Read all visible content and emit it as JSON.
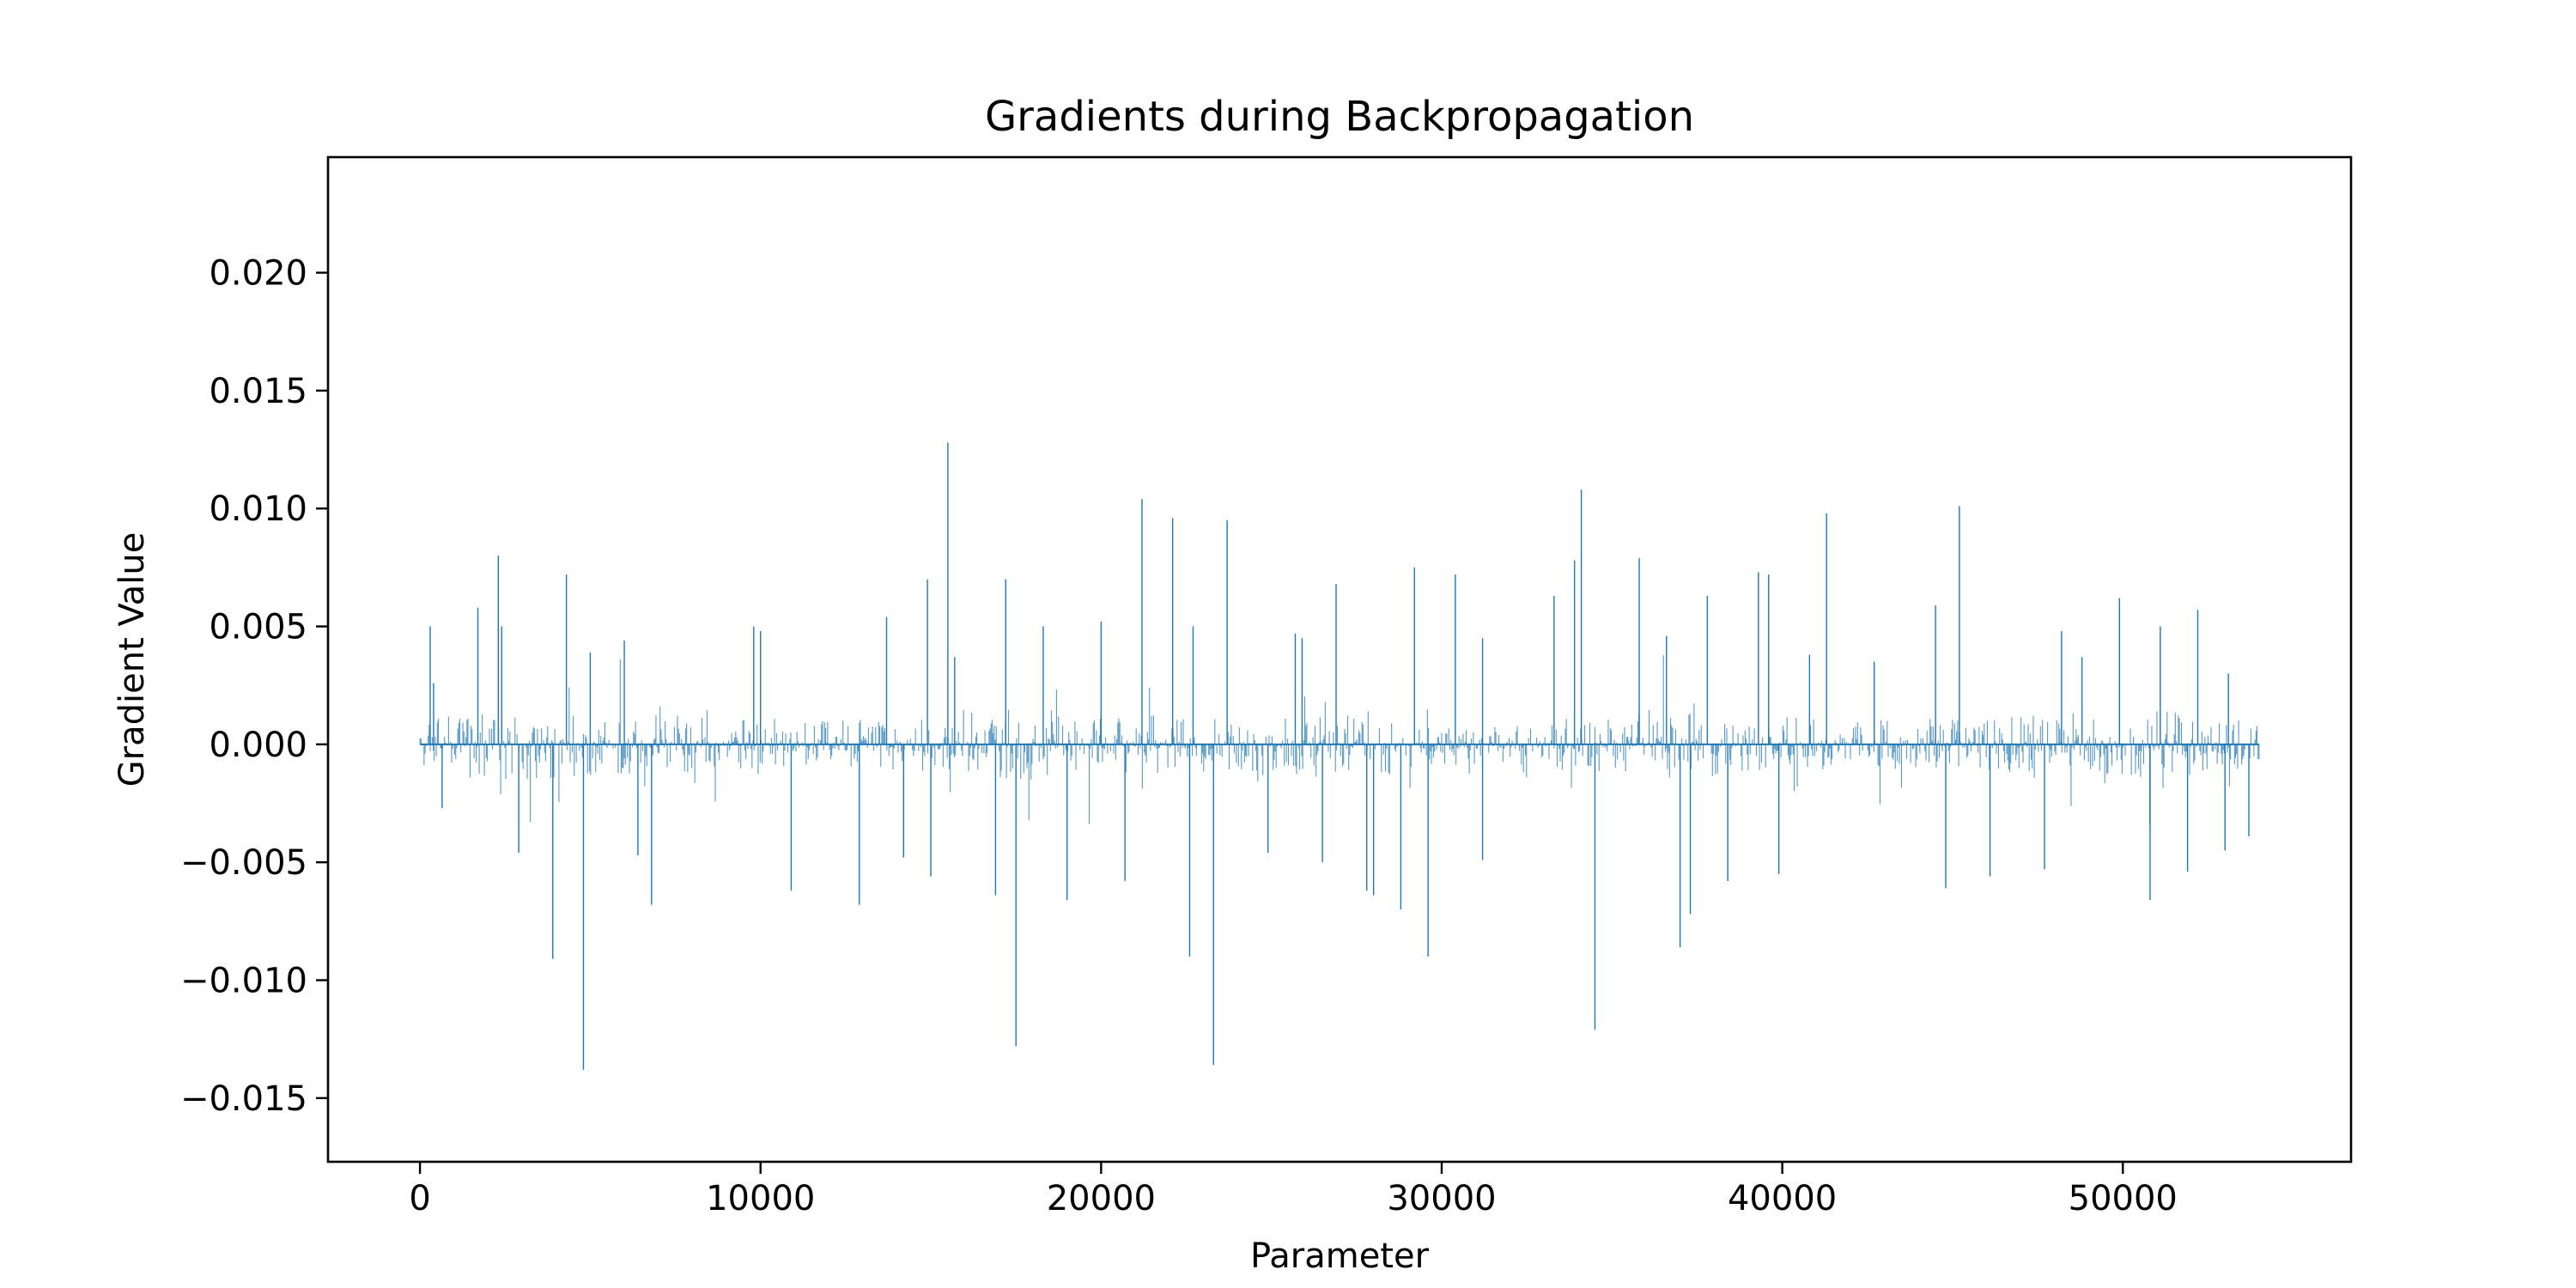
{
  "chart_data": {
    "type": "bar",
    "title": "Gradients during Backpropagation",
    "xlabel": "Parameter",
    "ylabel": "Gradient Value",
    "xlim": [
      -2700,
      56700
    ],
    "ylim": [
      -0.0177,
      0.0249
    ],
    "x_ticks": [
      0,
      10000,
      20000,
      30000,
      40000,
      50000
    ],
    "x_tick_labels": [
      "0",
      "10000",
      "20000",
      "30000",
      "40000",
      "50000"
    ],
    "y_ticks": [
      -0.015,
      -0.01,
      -0.005,
      0.0,
      0.005,
      0.01,
      0.015,
      0.02
    ],
    "y_tick_labels": [
      "−0.015",
      "−0.010",
      "−0.005",
      "0.000",
      "0.005",
      "0.010",
      "0.015",
      "0.020"
    ],
    "grid": false,
    "legend": "none",
    "color": "#1f77b4",
    "n_parameters": 54000,
    "prominent_values": [
      [
        300,
        0.005
      ],
      [
        400,
        0.0026
      ],
      [
        650,
        -0.0027
      ],
      [
        1700,
        0.0058
      ],
      [
        2300,
        0.008
      ],
      [
        2400,
        0.005
      ],
      [
        2900,
        -0.0046
      ],
      [
        3900,
        -0.0091
      ],
      [
        4300,
        0.0072
      ],
      [
        4800,
        -0.0138
      ],
      [
        5000,
        0.0039
      ],
      [
        6000,
        0.0044
      ],
      [
        6400,
        -0.0047
      ],
      [
        6800,
        -0.0068
      ],
      [
        9800,
        0.005
      ],
      [
        10000,
        0.0048
      ],
      [
        10900,
        -0.0062
      ],
      [
        12900,
        -0.0068
      ],
      [
        13700,
        0.0054
      ],
      [
        14200,
        -0.0048
      ],
      [
        14900,
        0.007
      ],
      [
        15000,
        -0.0056
      ],
      [
        15500,
        0.0128
      ],
      [
        15700,
        0.0037
      ],
      [
        16900,
        -0.0064
      ],
      [
        17200,
        0.007
      ],
      [
        17500,
        -0.0128
      ],
      [
        18300,
        0.005
      ],
      [
        19000,
        -0.0066
      ],
      [
        20000,
        0.0052
      ],
      [
        20700,
        -0.0058
      ],
      [
        21200,
        0.0104
      ],
      [
        22100,
        0.0096
      ],
      [
        22600,
        -0.009
      ],
      [
        22700,
        0.005
      ],
      [
        23300,
        -0.0136
      ],
      [
        23700,
        0.0095
      ],
      [
        24900,
        -0.0046
      ],
      [
        25700,
        0.0047
      ],
      [
        25900,
        0.0045
      ],
      [
        26500,
        -0.005
      ],
      [
        26900,
        0.0068
      ],
      [
        27800,
        -0.0062
      ],
      [
        28000,
        -0.0064
      ],
      [
        28800,
        -0.007
      ],
      [
        29200,
        0.0075
      ],
      [
        29600,
        -0.009
      ],
      [
        30400,
        0.0072
      ],
      [
        31200,
        -0.0049
      ],
      [
        31200,
        0.0045
      ],
      [
        33300,
        0.0063
      ],
      [
        33900,
        0.0078
      ],
      [
        34100,
        0.0108
      ],
      [
        34500,
        -0.0121
      ],
      [
        35800,
        0.0079
      ],
      [
        36600,
        0.0046
      ],
      [
        37000,
        -0.0086
      ],
      [
        37300,
        -0.0072
      ],
      [
        37800,
        0.0063
      ],
      [
        38400,
        -0.0058
      ],
      [
        39300,
        0.0073
      ],
      [
        39600,
        0.0072
      ],
      [
        39900,
        -0.0055
      ],
      [
        40800,
        0.0038
      ],
      [
        41300,
        0.0098
      ],
      [
        42700,
        0.0035
      ],
      [
        44500,
        0.0059
      ],
      [
        44800,
        -0.0061
      ],
      [
        45200,
        0.0101
      ],
      [
        46100,
        -0.0056
      ],
      [
        47700,
        -0.0053
      ],
      [
        48200,
        0.0048
      ],
      [
        48800,
        0.0037
      ],
      [
        49900,
        0.0062
      ],
      [
        50800,
        -0.0066
      ],
      [
        51100,
        0.005
      ],
      [
        51900,
        -0.0054
      ],
      [
        52200,
        0.0057
      ],
      [
        53000,
        -0.0045
      ],
      [
        53100,
        0.003
      ],
      [
        53700,
        -0.0039
      ]
    ],
    "background_amplitude": [
      [
        0,
        0.001
      ],
      [
        2000,
        0.0016
      ],
      [
        4000,
        0.0014
      ],
      [
        6000,
        0.0014
      ],
      [
        8000,
        0.0012
      ],
      [
        10000,
        0.001
      ],
      [
        12000,
        0.001
      ],
      [
        14000,
        0.0011
      ],
      [
        16000,
        0.0014
      ],
      [
        18000,
        0.0015
      ],
      [
        20000,
        0.0013
      ],
      [
        22000,
        0.0012
      ],
      [
        24000,
        0.0012
      ],
      [
        26000,
        0.0014
      ],
      [
        28000,
        0.0014
      ],
      [
        30000,
        0.0009
      ],
      [
        32000,
        0.0008
      ],
      [
        34000,
        0.0012
      ],
      [
        36000,
        0.0015
      ],
      [
        38000,
        0.0014
      ],
      [
        40000,
        0.0012
      ],
      [
        42000,
        0.001
      ],
      [
        44000,
        0.0011
      ],
      [
        46000,
        0.0011
      ],
      [
        48000,
        0.0013
      ],
      [
        50000,
        0.0014
      ],
      [
        52000,
        0.0014
      ],
      [
        54000,
        0.001
      ]
    ]
  }
}
